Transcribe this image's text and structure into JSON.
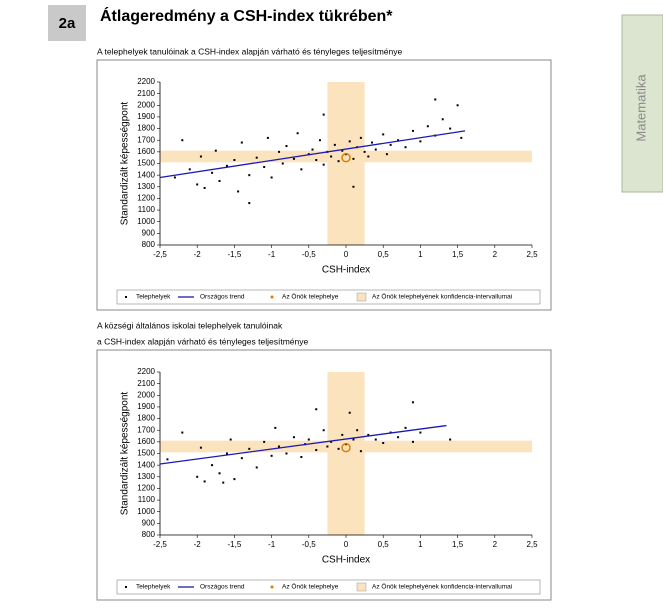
{
  "header": {
    "number": "2a",
    "title": "Átlageredmény a CSH-index tükrében*"
  },
  "side_tab": "Matematika",
  "chart_data": [
    {
      "type": "scatter",
      "title": [
        "A telephelyek tanulóinak a CSH-index alapján várható és tényleges teljesítménye"
      ],
      "x_label": "CSH-index",
      "y_label": "Standardizált képességpont",
      "xlim": [
        -2.5,
        2.5
      ],
      "ylim": [
        800,
        2200
      ],
      "xticks": [
        {
          "value": -2.5,
          "label": "-2,5"
        },
        -2,
        {
          "value": -1.5,
          "label": "-1,5"
        },
        -1,
        {
          "value": -0.5,
          "label": "-0,5"
        },
        0,
        {
          "value": 0.5,
          "label": "0,5"
        },
        1,
        {
          "value": 1.5,
          "label": "1,5"
        },
        2,
        {
          "value": 2.5,
          "label": "2,5"
        }
      ],
      "yticks": [
        800,
        900,
        1000,
        1100,
        1200,
        1300,
        1400,
        1500,
        1600,
        1700,
        1800,
        1900,
        2000,
        2100,
        2200
      ],
      "series": [
        {
          "name": "Telephelyek",
          "kind": "points",
          "color": "#000000",
          "x": [
            -2.3,
            -2.2,
            -2.1,
            -2.0,
            -1.95,
            -1.9,
            -1.8,
            -1.75,
            -1.7,
            -1.6,
            -1.5,
            -1.45,
            -1.4,
            -1.3,
            -1.2,
            -1.1,
            -1.05,
            -1.0,
            -0.9,
            -0.85,
            -0.8,
            -0.7,
            -0.65,
            -0.6,
            -0.5,
            -0.45,
            -0.4,
            -0.35,
            -0.3,
            -0.25,
            -0.2,
            -0.15,
            -0.1,
            -0.05,
            0.0,
            0.05,
            0.1,
            0.15,
            0.2,
            0.25,
            0.3,
            0.35,
            0.4,
            0.5,
            0.55,
            0.6,
            0.7,
            0.8,
            0.9,
            1.0,
            1.1,
            1.2,
            1.3,
            1.4,
            1.5,
            1.55,
            -0.3,
            0.1,
            1.2,
            -1.3
          ],
          "values": [
            1380,
            1700,
            1450,
            1320,
            1560,
            1290,
            1420,
            1610,
            1350,
            1480,
            1530,
            1260,
            1680,
            1400,
            1550,
            1470,
            1720,
            1380,
            1600,
            1500,
            1650,
            1540,
            1760,
            1450,
            1580,
            1620,
            1530,
            1700,
            1490,
            1600,
            1560,
            1660,
            1520,
            1610,
            1580,
            1690,
            1540,
            1640,
            1720,
            1600,
            1560,
            1680,
            1620,
            1750,
            1580,
            1660,
            1700,
            1640,
            1780,
            1690,
            1820,
            1740,
            1880,
            1800,
            2000,
            1720,
            1920,
            1300,
            2050,
            1160
          ]
        },
        {
          "name": "Országos trend",
          "kind": "line",
          "color": "#1a1ab8",
          "x": [
            -2.5,
            1.6
          ],
          "values": [
            1380,
            1780
          ]
        },
        {
          "name": "Az Önök telephelye",
          "kind": "marker",
          "color": "#e07b00",
          "x": [
            0.0
          ],
          "values": [
            1550
          ]
        },
        {
          "name": "Az Önök telephelyének konfidencia-intervallumai",
          "kind": "band",
          "color": "#fbe3bd",
          "x_range": [
            -0.25,
            0.25
          ],
          "y_range": [
            1510,
            1610
          ]
        }
      ]
    },
    {
      "type": "scatter",
      "title": [
        "A községi általános iskolai telephelyek tanulóinak",
        "a CSH-index alapján várható és tényleges teljesítménye"
      ],
      "x_label": "CSH-index",
      "y_label": "Standardizált képességpont",
      "xlim": [
        -2.5,
        2.5
      ],
      "ylim": [
        800,
        2200
      ],
      "xticks": [
        {
          "value": -2.5,
          "label": "-2,5"
        },
        -2,
        {
          "value": -1.5,
          "label": "-1,5"
        },
        -1,
        {
          "value": -0.5,
          "label": "-0,5"
        },
        0,
        {
          "value": 0.5,
          "label": "0,5"
        },
        1,
        {
          "value": 1.5,
          "label": "1,5"
        },
        2,
        {
          "value": 2.5,
          "label": "2,5"
        }
      ],
      "yticks": [
        800,
        900,
        1000,
        1100,
        1200,
        1300,
        1400,
        1500,
        1600,
        1700,
        1800,
        1900,
        2000,
        2100,
        2200
      ],
      "series": [
        {
          "name": "Telephelyek",
          "kind": "points",
          "color": "#000000",
          "x": [
            -2.4,
            -2.2,
            -2.0,
            -1.95,
            -1.9,
            -1.8,
            -1.7,
            -1.6,
            -1.55,
            -1.5,
            -1.4,
            -1.3,
            -1.2,
            -1.1,
            -1.0,
            -0.95,
            -0.9,
            -0.8,
            -0.7,
            -0.6,
            -0.55,
            -0.5,
            -0.4,
            -0.3,
            -0.25,
            -0.2,
            -0.1,
            -0.05,
            0.0,
            0.1,
            0.15,
            0.2,
            0.3,
            0.4,
            0.5,
            0.6,
            0.7,
            0.8,
            0.9,
            1.0,
            1.4,
            0.9,
            -0.4,
            0.05,
            -1.65
          ],
          "values": [
            1450,
            1680,
            1300,
            1550,
            1260,
            1400,
            1330,
            1500,
            1620,
            1280,
            1460,
            1540,
            1380,
            1600,
            1480,
            1720,
            1560,
            1500,
            1640,
            1470,
            1580,
            1620,
            1530,
            1700,
            1560,
            1600,
            1540,
            1660,
            1580,
            1620,
            1700,
            1520,
            1660,
            1620,
            1590,
            1680,
            1640,
            1720,
            1600,
            1680,
            1620,
            1940,
            1880,
            1850,
            1250
          ]
        },
        {
          "name": "Országos trend",
          "kind": "line",
          "color": "#1a1ab8",
          "x": [
            -2.5,
            1.35
          ],
          "values": [
            1410,
            1740
          ]
        },
        {
          "name": "Az Önök telephelye",
          "kind": "marker",
          "color": "#e07b00",
          "x": [
            0.0
          ],
          "values": [
            1550
          ]
        },
        {
          "name": "Az Önök telephelyének konfidencia-intervallumai",
          "kind": "band",
          "color": "#fbe3bd",
          "x_range": [
            -0.25,
            0.25
          ],
          "y_range": [
            1510,
            1610
          ]
        }
      ]
    }
  ]
}
